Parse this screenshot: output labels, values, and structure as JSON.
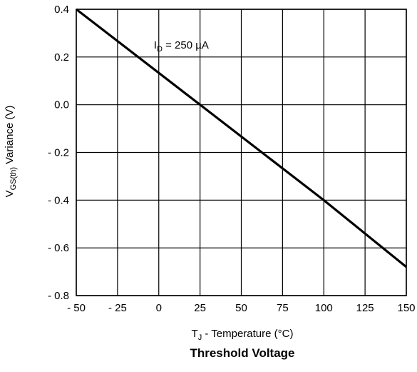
{
  "chart_data": {
    "type": "line",
    "title": "Threshold Voltage",
    "xlabel": {
      "main": "T",
      "sub": "J",
      "rest": " - Temperature (°C)"
    },
    "ylabel": {
      "main": "V",
      "sub": "GS(th)",
      "rest": "  Variance (V)"
    },
    "xlim": [
      -50,
      150
    ],
    "ylim": [
      -0.8,
      0.4
    ],
    "x_ticks": [
      -50,
      -25,
      0,
      25,
      50,
      75,
      100,
      125,
      150
    ],
    "x_tick_labels": [
      "- 50",
      "- 25",
      "0",
      "25",
      "50",
      "75",
      "100",
      "125",
      "150"
    ],
    "y_ticks": [
      0.4,
      0.2,
      0.0,
      -0.2,
      -0.4,
      -0.6,
      -0.8
    ],
    "y_tick_labels": [
      "0.4",
      "0.2",
      "0.0",
      "- 0.2",
      "- 0.4",
      "- 0.6",
      "- 0.8"
    ],
    "grid": true,
    "series": [
      {
        "x": [
          -50,
          25,
          100,
          150
        ],
        "y": [
          0.4,
          0.0,
          -0.4,
          -0.68
        ]
      }
    ],
    "annotation": {
      "main": "I",
      "sub": "D",
      "rest": " = 250 µA",
      "x": -3,
      "y": 0.25
    },
    "colors": {
      "line": "#000000",
      "grid": "#000000",
      "background": "#ffffff"
    }
  }
}
